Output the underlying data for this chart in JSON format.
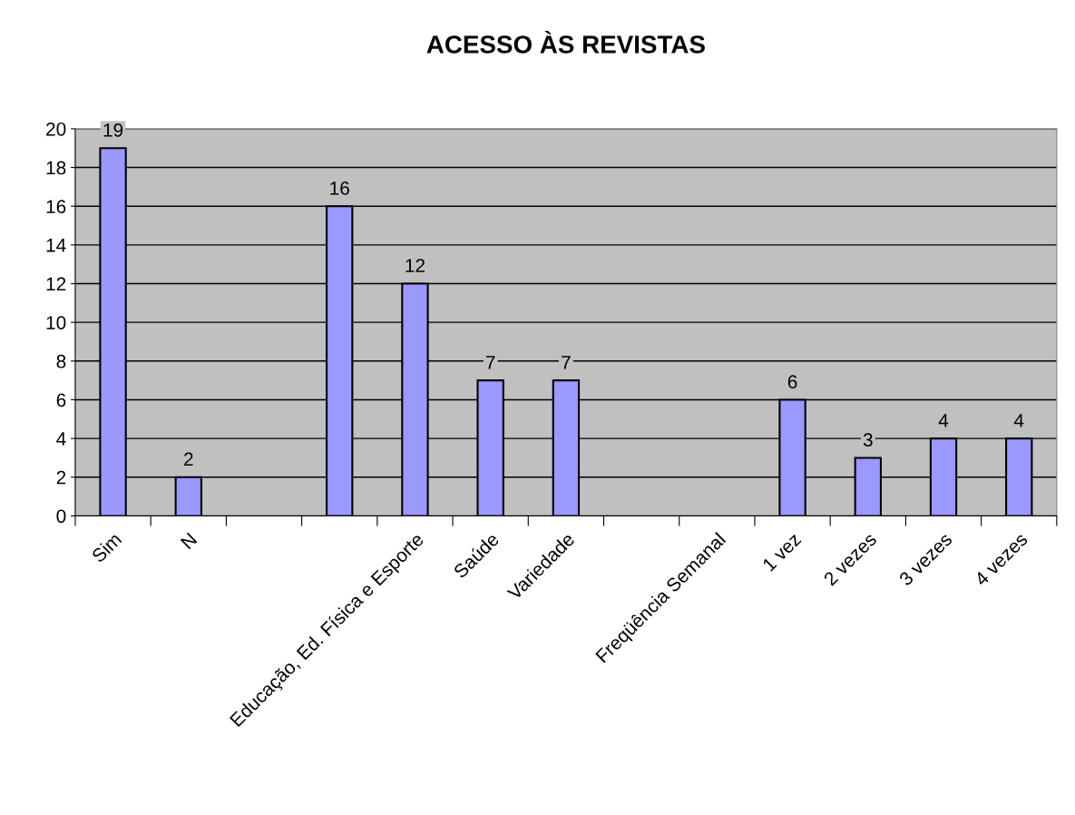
{
  "chart_data": {
    "type": "bar",
    "title": "ACESSO ÀS REVISTAS",
    "categories": [
      "Sim",
      "N",
      null,
      null,
      "Educação, Ed. Física e Esporte",
      "Saúde",
      "Variedade",
      null,
      "Freqüência Semanal",
      "1 vez",
      "2 vezes",
      "3 vezes",
      "4 vezes"
    ],
    "values": [
      19,
      2,
      null,
      16,
      12,
      7,
      7,
      null,
      null,
      6,
      3,
      4,
      4
    ],
    "color": "#9999ff",
    "ylim": [
      0,
      20
    ],
    "yticks": [
      0,
      2,
      4,
      6,
      8,
      10,
      12,
      14,
      16,
      18,
      20
    ],
    "grid": "y",
    "data_labels": true,
    "legend": false
  }
}
